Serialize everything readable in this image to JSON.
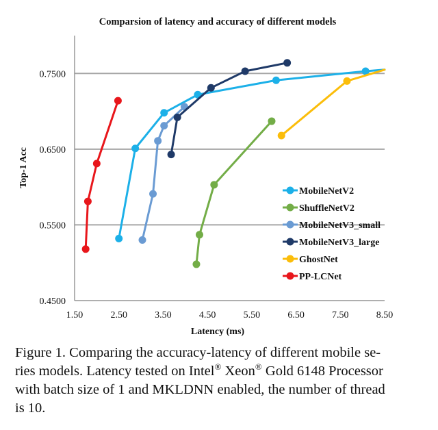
{
  "chart_data": {
    "type": "line",
    "title": "Comparsion of latency and accuracy of different models",
    "xlabel": "Latency (ms)",
    "ylabel": "Top-1 Acc",
    "xlim": [
      1.5,
      8.5
    ],
    "ylim": [
      0.45,
      0.8
    ],
    "xticks": [
      1.5,
      2.5,
      3.5,
      4.5,
      5.5,
      6.5,
      7.5,
      8.5
    ],
    "xtick_labels": [
      "1.50",
      "2.50",
      "3.50",
      "4.50",
      "5.50",
      "6.50",
      "7.50",
      "8.50"
    ],
    "yticks": [
      0.45,
      0.55,
      0.65,
      0.75
    ],
    "ytick_labels": [
      "0.4500",
      "0.5500",
      "0.6500",
      "0.7500"
    ],
    "grid": "horizontal",
    "legend_position": "right",
    "series": [
      {
        "name": "MobileNetV2",
        "color": "#1cb0e8",
        "x": [
          2.5,
          2.87,
          3.52,
          4.28,
          6.05,
          8.07
        ],
        "y": [
          0.532,
          0.651,
          0.698,
          0.722,
          0.741,
          0.753
        ],
        "extend_to": [
          8.5,
          0.755
        ]
      },
      {
        "name": "ShuffleNetV2",
        "color": "#73ad47",
        "x": [
          4.25,
          4.32,
          4.65,
          5.95
        ],
        "y": [
          0.498,
          0.537,
          0.603,
          0.687
        ]
      },
      {
        "name": "MobileNetV3_small",
        "color": "#6a9bd3",
        "x": [
          3.03,
          3.27,
          3.38,
          3.52,
          3.98
        ],
        "y": [
          0.53,
          0.591,
          0.661,
          0.681,
          0.706
        ]
      },
      {
        "name": "MobileNetV3_large",
        "color": "#1f3a68",
        "x": [
          3.68,
          3.82,
          4.58,
          5.35,
          6.3
        ],
        "y": [
          0.643,
          0.692,
          0.731,
          0.753,
          0.764
        ]
      },
      {
        "name": "GhostNet",
        "color": "#fbbd0a",
        "x": [
          6.17,
          7.65
        ],
        "y": [
          0.668,
          0.74
        ],
        "extend_to": [
          8.5,
          0.755
        ]
      },
      {
        "name": "PP-LCNet",
        "color": "#e8161b",
        "x": [
          1.75,
          1.8,
          2.0,
          2.48
        ],
        "y": [
          0.518,
          0.581,
          0.631,
          0.714
        ]
      }
    ]
  },
  "caption": {
    "text_1": "Figure 1. Comparing the accuracy-latency of different mobile se-",
    "text_2": "ries models. Latency tested on Intel",
    "reg_mark_1": "®",
    "text_3": " Xeon",
    "reg_mark_2": "®",
    "text_4": " Gold 6148 Processor",
    "text_5": "with batch size of 1 and MKLDNN enabled, the number of thread",
    "text_6": "is 10."
  }
}
